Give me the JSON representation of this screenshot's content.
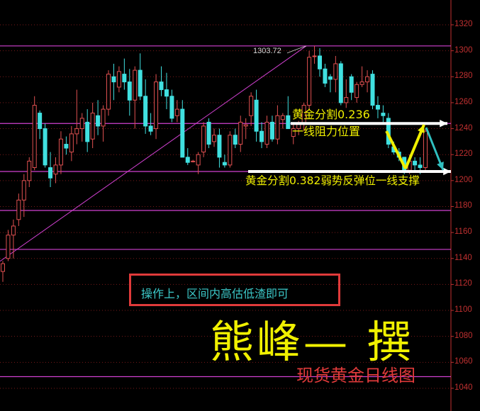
{
  "chart_data": {
    "type": "candlestick",
    "title": "",
    "subtitle": "现货黄金日线图",
    "ylim": [
      1030,
      1330
    ],
    "yticks": [
      1320,
      1300,
      1280,
      1260,
      1240,
      1220,
      1200,
      1180,
      1160,
      1140,
      1120,
      1100,
      1080,
      1060,
      1040
    ],
    "grid": true,
    "ohlc": [
      [
        1130,
        1138,
        1122,
        1136
      ],
      [
        1140,
        1162,
        1138,
        1158
      ],
      [
        1158,
        1170,
        1140,
        1165
      ],
      [
        1170,
        1190,
        1165,
        1185
      ],
      [
        1185,
        1205,
        1172,
        1200
      ],
      [
        1200,
        1218,
        1195,
        1215
      ],
      [
        1210,
        1265,
        1208,
        1258
      ],
      [
        1252,
        1254,
        1232,
        1240
      ],
      [
        1240,
        1244,
        1210,
        1212
      ],
      [
        1210,
        1222,
        1195,
        1202
      ],
      [
        1205,
        1218,
        1198,
        1212
      ],
      [
        1212,
        1238,
        1205,
        1232
      ],
      [
        1228,
        1234,
        1220,
        1225
      ],
      [
        1222,
        1242,
        1215,
        1236
      ],
      [
        1236,
        1270,
        1228,
        1240
      ],
      [
        1240,
        1252,
        1230,
        1248
      ],
      [
        1245,
        1255,
        1222,
        1230
      ],
      [
        1232,
        1260,
        1225,
        1252
      ],
      [
        1250,
        1262,
        1235,
        1242
      ],
      [
        1242,
        1258,
        1230,
        1255
      ],
      [
        1255,
        1285,
        1250,
        1282
      ],
      [
        1280,
        1290,
        1262,
        1276
      ],
      [
        1272,
        1288,
        1268,
        1284
      ],
      [
        1282,
        1294,
        1270,
        1276
      ],
      [
        1276,
        1286,
        1250,
        1262
      ],
      [
        1262,
        1288,
        1240,
        1285
      ],
      [
        1285,
        1298,
        1262,
        1265
      ],
      [
        1265,
        1278,
        1236,
        1242
      ],
      [
        1242,
        1252,
        1235,
        1238
      ],
      [
        1240,
        1282,
        1232,
        1276
      ],
      [
        1276,
        1288,
        1265,
        1270
      ],
      [
        1270,
        1283,
        1255,
        1265
      ],
      [
        1265,
        1270,
        1245,
        1248
      ],
      [
        1250,
        1262,
        1245,
        1255
      ],
      [
        1255,
        1262,
        1218,
        1218
      ],
      [
        1218,
        1225,
        1212,
        1214
      ],
      [
        1215,
        1216,
        1214,
        1215
      ],
      [
        1212,
        1222,
        1205,
        1220
      ],
      [
        1222,
        1245,
        1218,
        1242
      ],
      [
        1245,
        1248,
        1225,
        1228
      ],
      [
        1230,
        1240,
        1226,
        1235
      ],
      [
        1235,
        1240,
        1210,
        1218
      ],
      [
        1214,
        1220,
        1210,
        1212
      ],
      [
        1212,
        1238,
        1210,
        1235
      ],
      [
        1235,
        1240,
        1225,
        1228
      ],
      [
        1228,
        1250,
        1222,
        1245
      ],
      [
        1242,
        1248,
        1232,
        1243
      ],
      [
        1250,
        1268,
        1242,
        1265
      ],
      [
        1262,
        1270,
        1230,
        1238
      ],
      [
        1238,
        1245,
        1225,
        1230
      ],
      [
        1228,
        1250,
        1225,
        1245
      ],
      [
        1245,
        1250,
        1230,
        1232
      ],
      [
        1232,
        1258,
        1228,
        1250
      ],
      [
        1247,
        1252,
        1240,
        1250
      ],
      [
        1250,
        1265,
        1240,
        1240
      ],
      [
        1234,
        1244,
        1228,
        1240
      ],
      [
        1240,
        1246,
        1235,
        1244
      ],
      [
        1244,
        1260,
        1238,
        1258
      ],
      [
        1258,
        1300,
        1255,
        1295
      ],
      [
        1296,
        1304,
        1290,
        1296
      ],
      [
        1296,
        1302,
        1280,
        1286
      ],
      [
        1286,
        1290,
        1272,
        1275
      ],
      [
        1280,
        1282,
        1268,
        1278
      ],
      [
        1278,
        1296,
        1268,
        1290
      ],
      [
        1290,
        1292,
        1258,
        1260
      ],
      [
        1260,
        1278,
        1256,
        1264
      ],
      [
        1280,
        1282,
        1262,
        1268
      ],
      [
        1264,
        1276,
        1260,
        1274
      ],
      [
        1274,
        1288,
        1272,
        1276
      ],
      [
        1276,
        1285,
        1268,
        1280
      ],
      [
        1282,
        1285,
        1255,
        1258
      ],
      [
        1258,
        1265,
        1248,
        1255
      ],
      [
        1252,
        1258,
        1245,
        1250
      ],
      [
        1248,
        1252,
        1225,
        1228
      ],
      [
        1226,
        1230,
        1220,
        1222
      ],
      [
        1222,
        1225,
        1215,
        1218
      ],
      [
        1218,
        1218,
        1205,
        1208
      ],
      [
        1208,
        1220,
        1205,
        1215
      ],
      [
        1215,
        1218,
        1208,
        1212
      ],
      [
        1212,
        1218,
        1205,
        1210
      ],
      [
        1210,
        1240,
        1208,
        1238
      ]
    ],
    "horizontal_levels": [
      1303.72,
      1244,
      1207,
      1177,
      1147,
      1049
    ],
    "trendline": {
      "from_price": 1140,
      "to_price": 1303.72
    },
    "colors": {
      "up": "#e05050",
      "down": "#40e0e0",
      "levels": "#d040d0",
      "grid": "#7a1a1a",
      "axis": "#c03030"
    }
  },
  "annotations": {
    "peak_label": "1303.72",
    "fib_0236": "黄金分割0.236",
    "resistance": "一线阻力位置",
    "fib_0382": "黄金分割0.382弱势反弹位一线支撑",
    "operation_note": "操作上，区间内高估低渣即可",
    "author": "熊峰— 撰",
    "subtitle": "现货黄金日线图"
  }
}
